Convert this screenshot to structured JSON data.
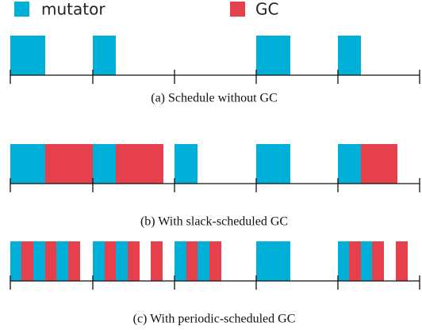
{
  "legend": [
    {
      "label": "mutator"
    },
    {
      "label": "GC"
    }
  ],
  "captions": [
    "(a) Schedule without GC",
    "(b) With slack-scheduled GC",
    "(c) With periodic-scheduled GC"
  ]
}
